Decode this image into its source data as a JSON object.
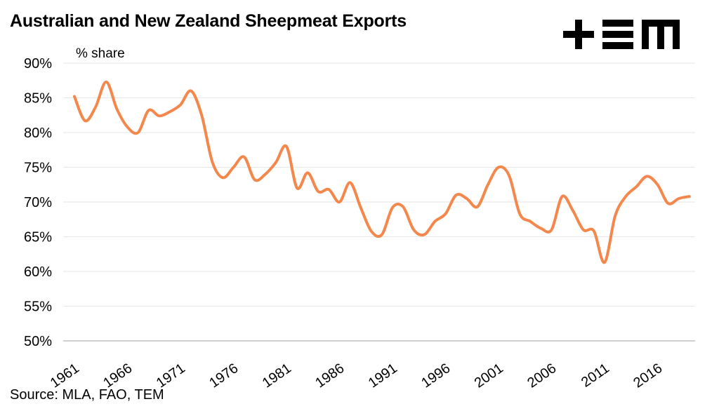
{
  "title": "Australian and New Zealand Sheepmeat Exports",
  "unit_label": "% share",
  "source": "Source: MLA, FAO, TEM",
  "logo": "TEM",
  "colors": {
    "line": "#F4874B",
    "grid": "#E6E6E6",
    "axis": "#BFBFBF",
    "text": "#000000"
  },
  "chart_data": {
    "type": "line",
    "title": "Australian and New Zealand Sheepmeat Exports",
    "ylabel": "% share",
    "xlabel": "",
    "ylim": [
      50,
      90
    ],
    "yticks": [
      50,
      55,
      60,
      65,
      70,
      75,
      80,
      85,
      90
    ],
    "ytick_labels": [
      "50%",
      "55%",
      "60%",
      "65%",
      "70%",
      "75%",
      "80%",
      "85%",
      "90%"
    ],
    "xtick_labels": [
      "1961",
      "1966",
      "1971",
      "1976",
      "1981",
      "1986",
      "1991",
      "1996",
      "2001",
      "2006",
      "2011",
      "2016"
    ],
    "grid": true,
    "x": [
      1961,
      1962,
      1963,
      1964,
      1965,
      1966,
      1967,
      1968,
      1969,
      1970,
      1971,
      1972,
      1973,
      1974,
      1975,
      1976,
      1977,
      1978,
      1979,
      1980,
      1981,
      1982,
      1983,
      1984,
      1985,
      1986,
      1987,
      1988,
      1989,
      1990,
      1991,
      1992,
      1993,
      1994,
      1995,
      1996,
      1997,
      1998,
      1999,
      2000,
      2001,
      2002,
      2003,
      2004,
      2005,
      2006,
      2007,
      2008,
      2009,
      2010,
      2011,
      2012,
      2013,
      2014,
      2015,
      2016,
      2017,
      2018,
      2019
    ],
    "series": [
      {
        "values": [
          85.2,
          81.7,
          83.7,
          87.3,
          83.4,
          80.8,
          80.0,
          83.2,
          82.4,
          83.0,
          84.0,
          86.0,
          82.5,
          75.8,
          73.5,
          75.0,
          76.5,
          73.2,
          74.0,
          75.7,
          78.0,
          72.0,
          74.2,
          71.5,
          71.8,
          70.0,
          72.8,
          69.2,
          65.8,
          65.3,
          69.2,
          69.3,
          66.0,
          65.3,
          67.2,
          68.3,
          71.0,
          70.5,
          69.3,
          72.5,
          75.0,
          73.8,
          68.3,
          67.2,
          66.2,
          66.0,
          70.8,
          68.8,
          66.0,
          65.8,
          61.3,
          68.0,
          70.8,
          72.2,
          73.7,
          72.5,
          69.8,
          70.5,
          70.8
        ]
      }
    ]
  }
}
